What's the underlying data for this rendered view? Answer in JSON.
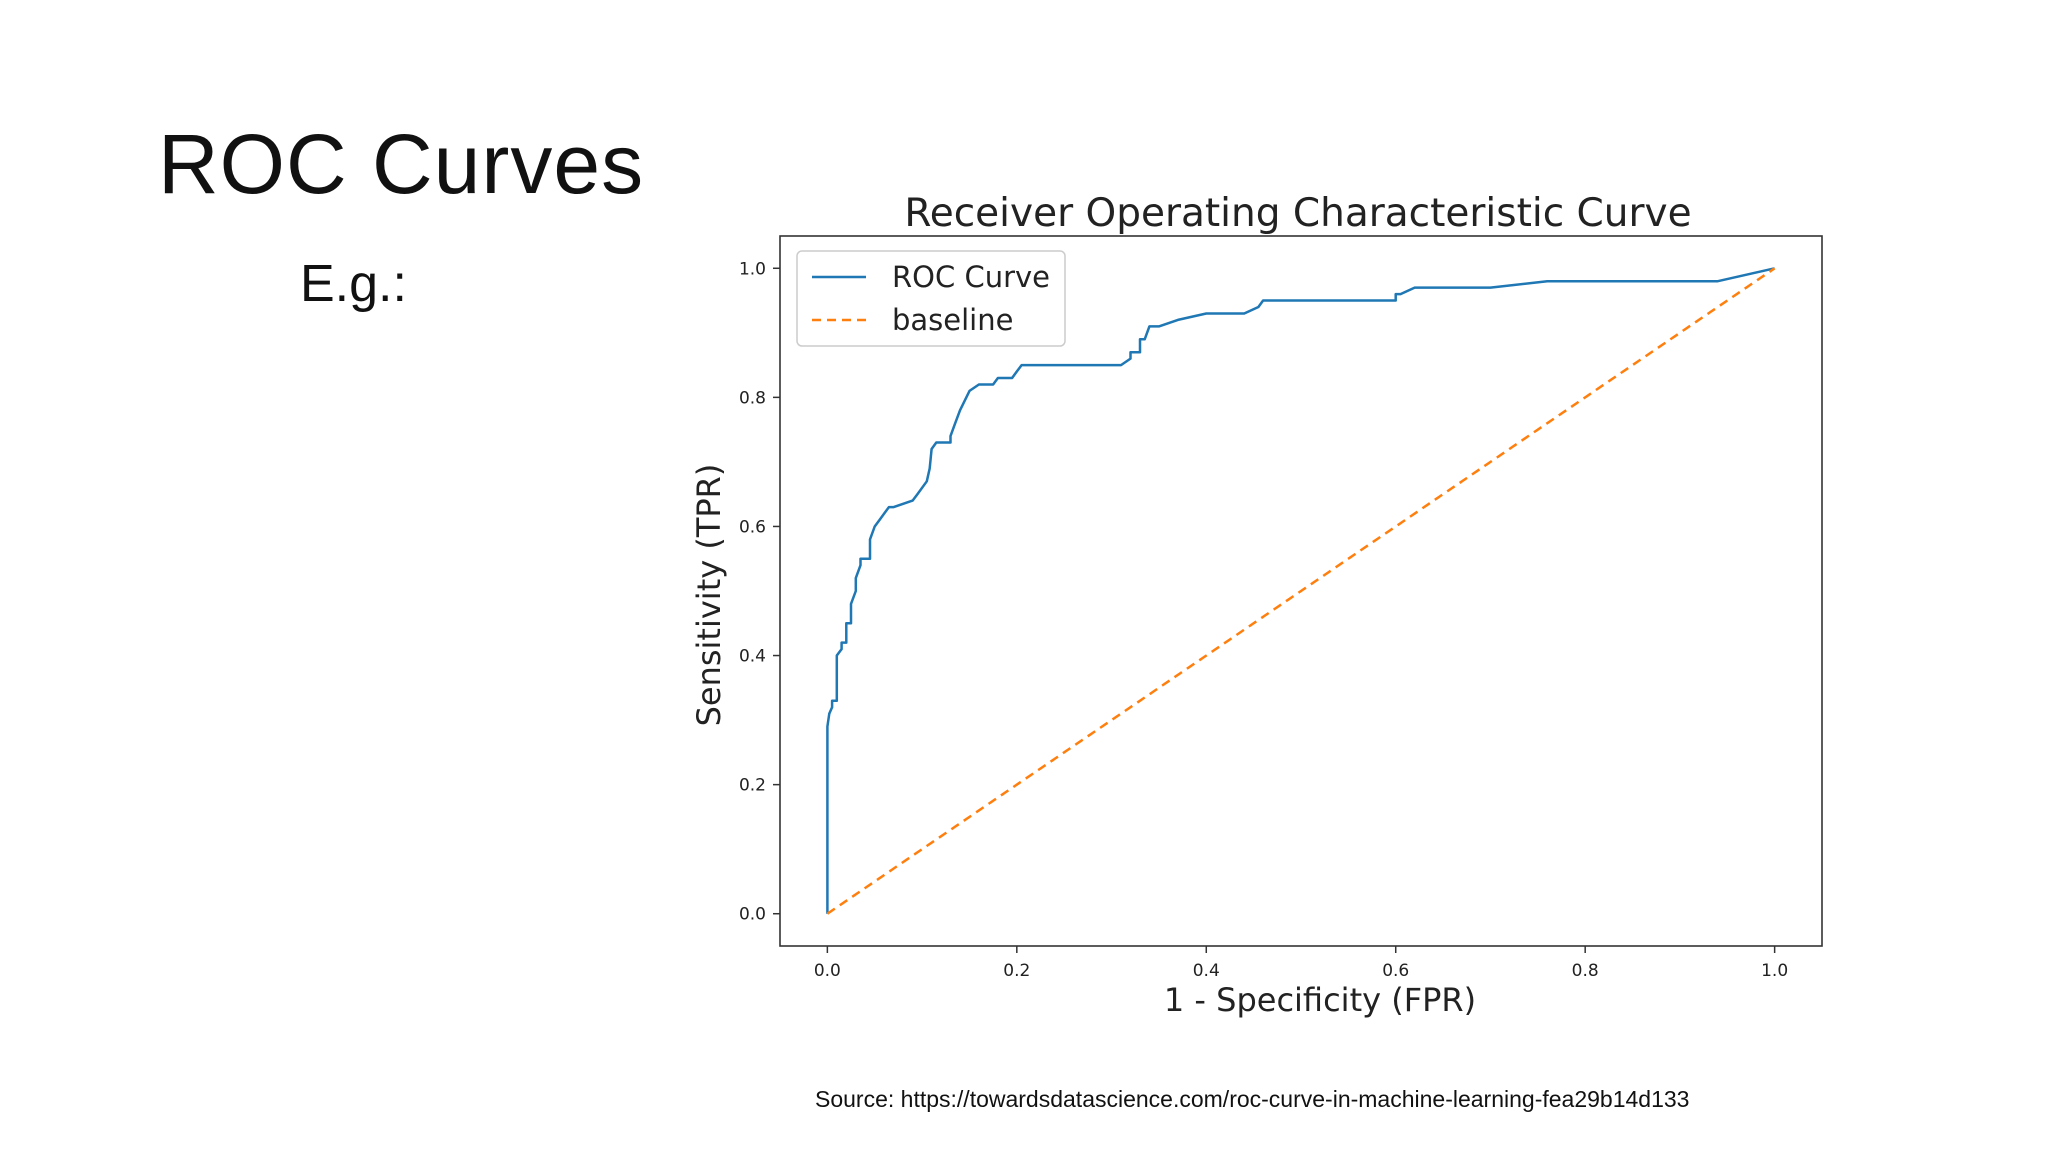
{
  "slide": {
    "title": "ROC Curves",
    "subtitle": "E.g.:",
    "source": "Source: https://towardsdatascience.com/roc-curve-in-machine-learning-fea29b14d133"
  },
  "chart_data": {
    "type": "line",
    "title": "Receiver Operating Characteristic Curve",
    "xlabel": "1 - Specificity (FPR)",
    "ylabel": "Sensitivity (TPR)",
    "xlim": [
      -0.05,
      1.05
    ],
    "ylim": [
      -0.05,
      1.05
    ],
    "xticks": [
      "0.0",
      "0.2",
      "0.4",
      "0.6",
      "0.8",
      "1.0"
    ],
    "yticks": [
      "0.0",
      "0.2",
      "0.4",
      "0.6",
      "0.8",
      "1.0"
    ],
    "grid": false,
    "legend_position": "top-left",
    "series": [
      {
        "name": "ROC Curve",
        "color": "#1f77b4",
        "style": "solid",
        "x": [
          0.0,
          0.0,
          0.002,
          0.005,
          0.005,
          0.01,
          0.01,
          0.015,
          0.015,
          0.02,
          0.02,
          0.025,
          0.025,
          0.03,
          0.03,
          0.035,
          0.035,
          0.045,
          0.045,
          0.05,
          0.055,
          0.06,
          0.065,
          0.07,
          0.09,
          0.095,
          0.105,
          0.108,
          0.11,
          0.115,
          0.115,
          0.13,
          0.13,
          0.135,
          0.14,
          0.15,
          0.15,
          0.16,
          0.175,
          0.18,
          0.195,
          0.2,
          0.205,
          0.31,
          0.32,
          0.32,
          0.33,
          0.33,
          0.335,
          0.34,
          0.35,
          0.37,
          0.4,
          0.42,
          0.44,
          0.455,
          0.46,
          0.6,
          0.6,
          0.605,
          0.62,
          0.7,
          0.76,
          0.94,
          1.0
        ],
        "y": [
          0.0,
          0.29,
          0.31,
          0.32,
          0.33,
          0.33,
          0.4,
          0.41,
          0.42,
          0.42,
          0.45,
          0.45,
          0.48,
          0.5,
          0.52,
          0.54,
          0.55,
          0.55,
          0.58,
          0.6,
          0.61,
          0.62,
          0.63,
          0.63,
          0.64,
          0.65,
          0.67,
          0.69,
          0.72,
          0.73,
          0.73,
          0.73,
          0.74,
          0.76,
          0.78,
          0.81,
          0.81,
          0.82,
          0.82,
          0.83,
          0.83,
          0.84,
          0.85,
          0.85,
          0.86,
          0.87,
          0.87,
          0.89,
          0.89,
          0.91,
          0.91,
          0.92,
          0.93,
          0.93,
          0.93,
          0.94,
          0.95,
          0.95,
          0.96,
          0.96,
          0.97,
          0.97,
          0.98,
          0.98,
          1.0
        ]
      },
      {
        "name": "baseline",
        "color": "#ff7f0e",
        "style": "dashed",
        "x": [
          0.0,
          1.0
        ],
        "y": [
          0.0,
          1.0
        ]
      }
    ]
  }
}
